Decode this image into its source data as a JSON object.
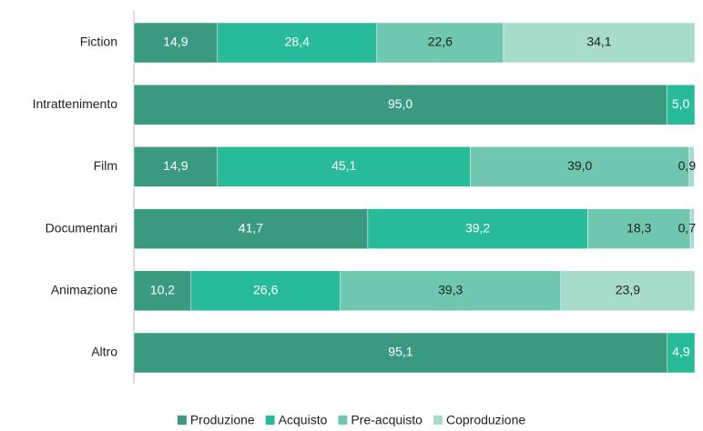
{
  "chart_data": {
    "type": "stacked_bar_horizontal",
    "categories": [
      "Fiction",
      "Intrattenimento",
      "Film",
      "Documentari",
      "Animazione",
      "Altro"
    ],
    "series": [
      {
        "name": "Produzione",
        "color": "#3a9a80",
        "values": [
          14.9,
          95.0,
          14.9,
          41.7,
          10.2,
          95.1
        ],
        "value_labels": [
          "14,9",
          "95,0",
          "14,9",
          "41,7",
          "10,2",
          "95,1"
        ]
      },
      {
        "name": "Acquisto",
        "color": "#27bb9a",
        "values": [
          28.4,
          5.0,
          45.1,
          39.2,
          26.6,
          4.9
        ],
        "value_labels": [
          "28,4",
          "5,0",
          "45,1",
          "39,2",
          "26,6",
          "4,9"
        ]
      },
      {
        "name": "Pre-acquisto",
        "color": "#6fc7b0",
        "values": [
          22.6,
          0,
          39.0,
          18.3,
          39.3,
          0
        ],
        "value_labels": [
          "22,6",
          null,
          "39,0",
          "18,3",
          "39,3",
          null
        ]
      },
      {
        "name": "Coproduzione",
        "color": "#a7dbca",
        "values": [
          34.1,
          0,
          0.9,
          0.7,
          23.9,
          0
        ],
        "value_labels": [
          "34,1",
          null,
          "0,9",
          "0,7",
          "23,9",
          null
        ]
      }
    ],
    "xlim": [
      0,
      100
    ],
    "legend": "bottom"
  }
}
